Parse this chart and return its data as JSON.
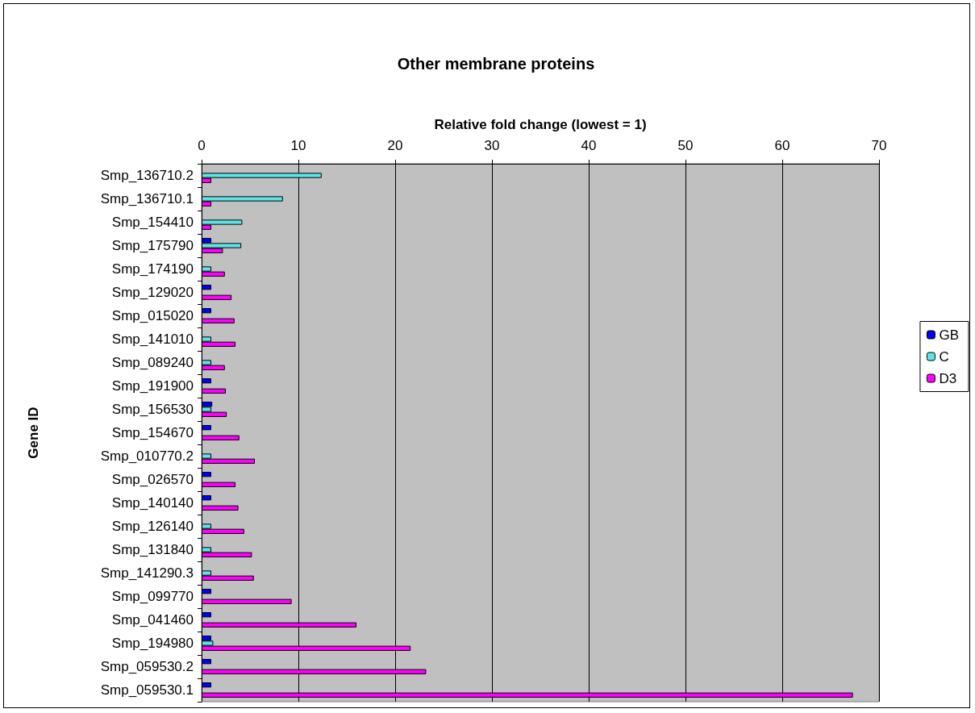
{
  "chart_data": {
    "type": "bar",
    "orientation": "horizontal",
    "title": "Other membrane proteins",
    "xlabel": "Relative fold change (lowest = 1)",
    "ylabel": "Gene ID",
    "categories": [
      "Smp_136710.2",
      "Smp_136710.1",
      "Smp_154410",
      "Smp_175790",
      "Smp_174190",
      "Smp_129020",
      "Smp_015020",
      "Smp_141010",
      "Smp_089240",
      "Smp_191900",
      "Smp_156530",
      "Smp_154670",
      "Smp_010770.2",
      "Smp_026570",
      "Smp_140140",
      "Smp_126140",
      "Smp_131840",
      "Smp_141290.3",
      "Smp_099770",
      "Smp_041460",
      "Smp_194980",
      "Smp_059530.2",
      "Smp_059530.1"
    ],
    "series": [
      {
        "name": "GB",
        "color": "#0000ff",
        "values": [
          null,
          null,
          null,
          1,
          null,
          1,
          1,
          null,
          null,
          1,
          1.1,
          1,
          null,
          1,
          1,
          null,
          null,
          null,
          1,
          1,
          1,
          1,
          1
        ]
      },
      {
        "name": "C",
        "color": "#5ee3e6",
        "values": [
          12.4,
          8.4,
          4.2,
          4.1,
          1,
          null,
          null,
          1,
          1,
          null,
          1,
          null,
          1,
          null,
          null,
          1,
          1,
          1,
          null,
          null,
          1.2,
          null,
          null
        ]
      },
      {
        "name": "D3",
        "color": "#ff00ff",
        "values": [
          1,
          1,
          1,
          2.2,
          2.4,
          3.1,
          3.4,
          3.5,
          2.4,
          2.5,
          2.6,
          3.9,
          5.5,
          3.5,
          3.8,
          4.4,
          5.2,
          5.4,
          9.3,
          16,
          21.6,
          23.2,
          67.3
        ]
      }
    ],
    "xlim": [
      0,
      70
    ],
    "xticks": [
      0,
      10,
      20,
      30,
      40,
      50,
      60,
      70
    ],
    "grid": "x",
    "legend": "right"
  }
}
